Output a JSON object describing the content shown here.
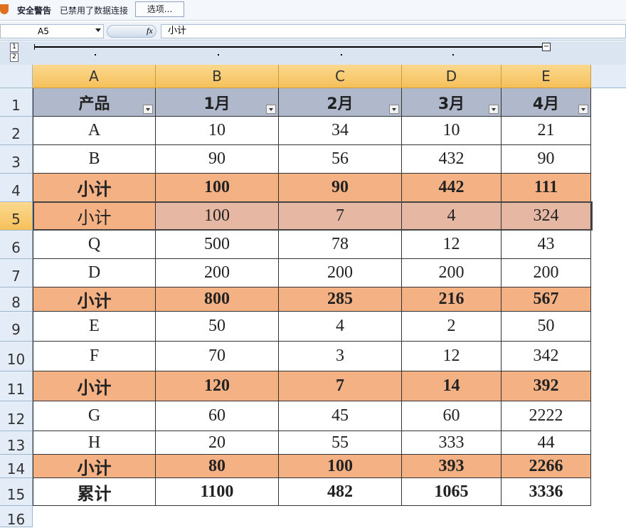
{
  "toolbar": {
    "security_warning": "安全警告",
    "message": "已禁用了数据连接",
    "options_button": "选项..."
  },
  "formula_bar": {
    "name_box": "A5",
    "fx": "fx",
    "formula": "小计"
  },
  "outline": {
    "levels": [
      "1",
      "2"
    ]
  },
  "sheet": {
    "columns": [
      "A",
      "B",
      "C",
      "D",
      "E"
    ],
    "row_numbers": [
      "1",
      "2",
      "3",
      "4",
      "5",
      "6",
      "7",
      "8",
      "9",
      "10",
      "11",
      "12",
      "13",
      "14",
      "15",
      "16"
    ],
    "rows": [
      [
        "产品",
        "1月",
        "2月",
        "3月",
        "4月"
      ],
      [
        "A",
        "10",
        "34",
        "10",
        "21"
      ],
      [
        "B",
        "90",
        "56",
        "432",
        "90"
      ],
      [
        "小计",
        "100",
        "90",
        "442",
        "111"
      ],
      [
        "小计",
        "100",
        "7",
        "4",
        "324"
      ],
      [
        "Q",
        "500",
        "78",
        "12",
        "43"
      ],
      [
        "D",
        "200",
        "200",
        "200",
        "200"
      ],
      [
        "小计",
        "800",
        "285",
        "216",
        "567"
      ],
      [
        "E",
        "50",
        "4",
        "2",
        "50"
      ],
      [
        "F",
        "70",
        "3",
        "12",
        "342"
      ],
      [
        "小计",
        "120",
        "7",
        "14",
        "392"
      ],
      [
        "G",
        "60",
        "45",
        "60",
        "2222"
      ],
      [
        "H",
        "20",
        "55",
        "333",
        "44"
      ],
      [
        "小计",
        "80",
        "100",
        "393",
        "2266"
      ],
      [
        "累计",
        "1100",
        "482",
        "1065",
        "3336"
      ]
    ]
  }
}
